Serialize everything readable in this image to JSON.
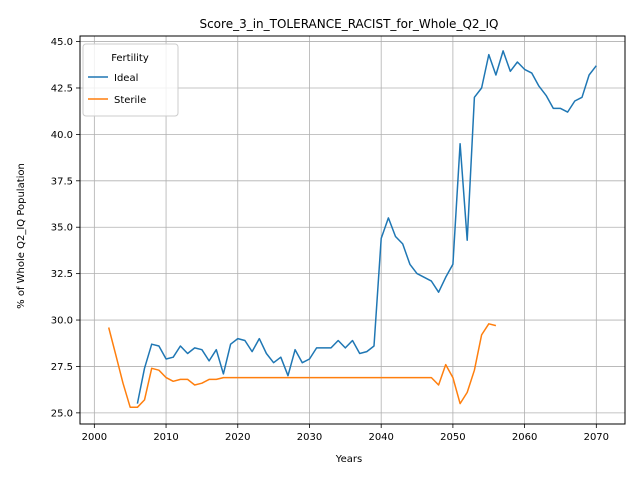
{
  "chart_data": {
    "type": "line",
    "title": "Score_3_in_TOLERANCE_RACIST_for_Whole_Q2_IQ",
    "xlabel": "Years",
    "ylabel": "% of Whole Q2_IQ Population",
    "xlim": [
      1998,
      2074
    ],
    "ylim": [
      24.4,
      45.3
    ],
    "xticks": [
      2000,
      2010,
      2020,
      2030,
      2040,
      2050,
      2060,
      2070
    ],
    "yticks": [
      25.0,
      27.5,
      30.0,
      32.5,
      35.0,
      37.5,
      40.0,
      42.5,
      45.0
    ],
    "grid": true,
    "legend": {
      "title": "Fertility",
      "position": "upper-left"
    },
    "series": [
      {
        "name": "Ideal",
        "color": "#1f77b4",
        "x": [
          2006,
          2007,
          2008,
          2009,
          2010,
          2011,
          2012,
          2013,
          2014,
          2015,
          2016,
          2017,
          2018,
          2019,
          2020,
          2021,
          2022,
          2023,
          2024,
          2025,
          2026,
          2027,
          2028,
          2029,
          2030,
          2031,
          2032,
          2033,
          2034,
          2035,
          2036,
          2037,
          2038,
          2039,
          2040,
          2041,
          2042,
          2043,
          2044,
          2045,
          2046,
          2047,
          2048,
          2049,
          2050,
          2051,
          2052,
          2053,
          2054,
          2055,
          2056,
          2057,
          2058,
          2059,
          2060,
          2061,
          2062,
          2063,
          2064,
          2065,
          2066,
          2067,
          2068,
          2069,
          2070
        ],
        "y": [
          25.5,
          27.4,
          28.7,
          28.6,
          27.9,
          28.0,
          28.6,
          28.2,
          28.5,
          28.4,
          27.8,
          28.4,
          27.1,
          28.7,
          29.0,
          28.9,
          28.3,
          29.0,
          28.2,
          27.7,
          28.0,
          27.0,
          28.4,
          27.7,
          27.9,
          28.5,
          28.5,
          28.5,
          28.9,
          28.5,
          28.9,
          28.2,
          28.3,
          28.6,
          34.4,
          35.5,
          34.5,
          34.1,
          33.0,
          32.5,
          32.3,
          32.1,
          31.5,
          32.3,
          33.0,
          39.5,
          34.3,
          42.0,
          42.5,
          44.3,
          43.2,
          44.5,
          43.4,
          43.9,
          43.5,
          43.3,
          42.6,
          42.1,
          41.4,
          41.4,
          41.2,
          41.8,
          42.0,
          43.2,
          43.7
        ]
      },
      {
        "name": "Sterile",
        "color": "#ff7f0e",
        "x": [
          2002,
          2003,
          2004,
          2005,
          2006,
          2007,
          2008,
          2009,
          2010,
          2011,
          2012,
          2013,
          2014,
          2015,
          2016,
          2017,
          2018,
          2019,
          2020,
          2021,
          2022,
          2023,
          2024,
          2025,
          2026,
          2027,
          2028,
          2029,
          2030,
          2031,
          2032,
          2033,
          2034,
          2035,
          2036,
          2037,
          2038,
          2039,
          2040,
          2041,
          2042,
          2043,
          2044,
          2045,
          2046,
          2047,
          2048,
          2049,
          2050,
          2051,
          2052,
          2053,
          2054,
          2055,
          2056
        ],
        "y": [
          29.6,
          28.1,
          26.6,
          25.3,
          25.3,
          25.7,
          27.4,
          27.3,
          26.9,
          26.7,
          26.8,
          26.8,
          26.5,
          26.6,
          26.8,
          26.8,
          26.9,
          26.9,
          26.9,
          26.9,
          26.9,
          26.9,
          26.9,
          26.9,
          26.9,
          26.9,
          26.9,
          26.9,
          26.9,
          26.9,
          26.9,
          26.9,
          26.9,
          26.9,
          26.9,
          26.9,
          26.9,
          26.9,
          26.9,
          26.9,
          26.9,
          26.9,
          26.9,
          26.9,
          26.9,
          26.9,
          26.5,
          27.6,
          26.9,
          25.5,
          26.1,
          27.3,
          29.2,
          29.8,
          29.7
        ]
      }
    ]
  }
}
